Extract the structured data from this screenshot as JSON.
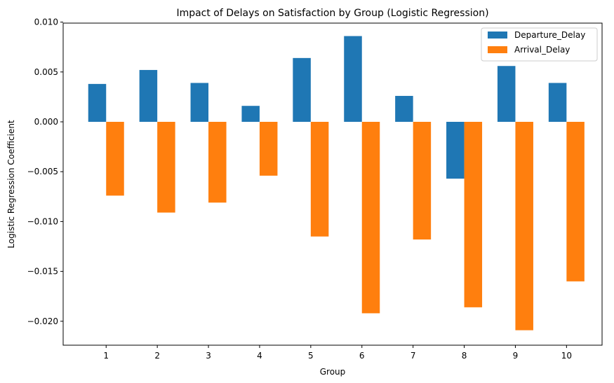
{
  "chart_data": {
    "type": "bar",
    "title": "Impact of Delays on Satisfaction by Group (Logistic Regression)",
    "xlabel": "Group",
    "ylabel": "Logistic Regression Coefficient",
    "categories": [
      "1",
      "2",
      "3",
      "4",
      "5",
      "6",
      "7",
      "8",
      "9",
      "10"
    ],
    "series": [
      {
        "name": "Departure_Delay",
        "color": "#1f77b4",
        "values": [
          0.0038,
          0.0052,
          0.0039,
          0.0016,
          0.0064,
          0.0086,
          0.0026,
          -0.0057,
          0.0056,
          0.0039
        ]
      },
      {
        "name": "Arrival_Delay",
        "color": "#ff7f0e",
        "values": [
          -0.0074,
          -0.0091,
          -0.0081,
          -0.0054,
          -0.0115,
          -0.0192,
          -0.0118,
          -0.0186,
          -0.0209,
          -0.016
        ]
      }
    ],
    "ylim": [
      -0.0224,
      0.0099
    ],
    "yticks": [
      0.01,
      0.005,
      0.0,
      -0.005,
      -0.01,
      -0.015,
      -0.02
    ],
    "ytick_labels": [
      "0.010",
      "0.005",
      "0.000",
      "−0.005",
      "−0.010",
      "−0.015",
      "−0.020"
    ],
    "grid": false,
    "legend_position": "top-right"
  }
}
